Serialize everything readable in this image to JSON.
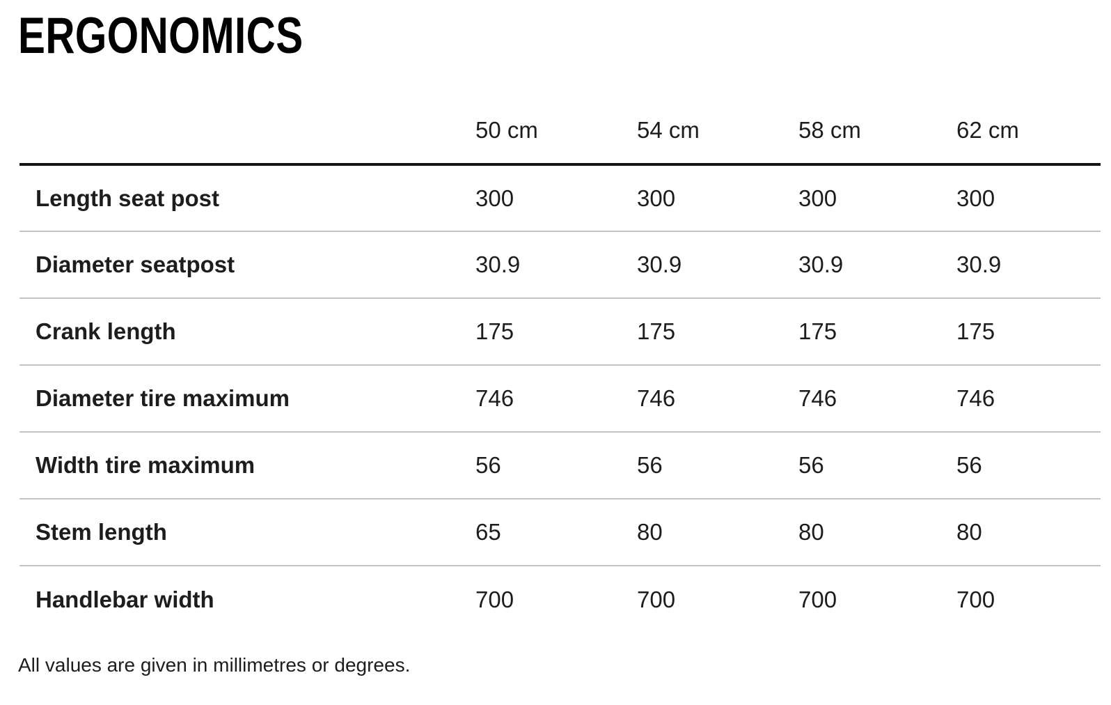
{
  "page": {
    "title": "ERGONOMICS",
    "footnote": "All values are given in millimetres or degrees."
  },
  "table": {
    "columns": [
      "50 cm",
      "54 cm",
      "58 cm",
      "62 cm"
    ],
    "rows": [
      {
        "label": "Length seat post",
        "values": [
          "300",
          "300",
          "300",
          "300"
        ]
      },
      {
        "label": "Diameter seatpost",
        "values": [
          "30.9",
          "30.9",
          "30.9",
          "30.9"
        ]
      },
      {
        "label": "Crank length",
        "values": [
          "175",
          "175",
          "175",
          "175"
        ]
      },
      {
        "label": "Diameter tire maximum",
        "values": [
          "746",
          "746",
          "746",
          "746"
        ]
      },
      {
        "label": "Width tire maximum",
        "values": [
          "56",
          "56",
          "56",
          "56"
        ]
      },
      {
        "label": "Stem length",
        "values": [
          "65",
          "80",
          "80",
          "80"
        ]
      },
      {
        "label": "Handlebar width",
        "values": [
          "700",
          "700",
          "700",
          "700"
        ]
      }
    ]
  },
  "colors": {
    "background": "#ffffff",
    "text": "#1d1d1f",
    "title": "#000000",
    "header_rule": "#151515",
    "row_divider": "#c2c6ca"
  }
}
